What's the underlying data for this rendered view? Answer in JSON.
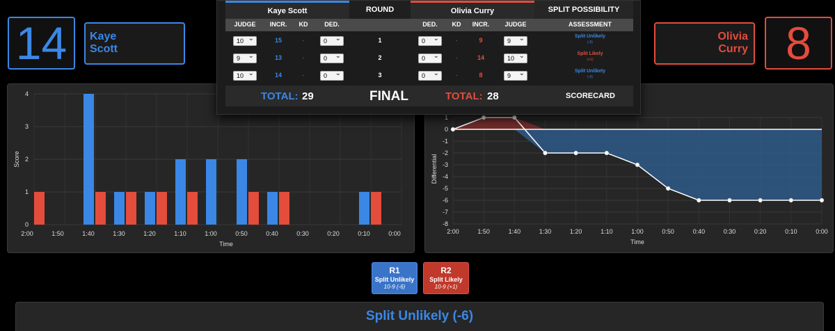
{
  "fighters": {
    "blue": {
      "score": "14",
      "first": "Kaye",
      "last": "Scott",
      "full": "Kaye Scott"
    },
    "red": {
      "score": "8",
      "first": "Olivia",
      "last": "Curry",
      "full": "Olivia Curry"
    }
  },
  "scorecard": {
    "round_header": "ROUND",
    "split_header": "SPLIT POSSIBILITY",
    "subheaders": {
      "judge": "JUDGE",
      "incr": "INCR.",
      "kd": "KD",
      "ded": "DED.",
      "assessment": "ASSESSMENT"
    },
    "rows": [
      {
        "round": "1",
        "blue_judge": "10",
        "blue_incr": "15",
        "blue_kd": "-",
        "blue_ded": "0",
        "red_ded": "0",
        "red_kd": "-",
        "red_incr": "9",
        "red_judge": "9",
        "assessment": "Split Unlikely",
        "assessment_sub": "(-6)",
        "assessment_color": "blue"
      },
      {
        "round": "2",
        "blue_judge": "9",
        "blue_incr": "13",
        "blue_kd": "-",
        "blue_ded": "0",
        "red_ded": "0",
        "red_kd": "-",
        "red_incr": "14",
        "red_judge": "10",
        "assessment": "Split Likely",
        "assessment_sub": "(+1)",
        "assessment_color": "red"
      },
      {
        "round": "3",
        "blue_judge": "10",
        "blue_incr": "14",
        "blue_kd": "-",
        "blue_ded": "0",
        "red_ded": "0",
        "red_kd": "-",
        "red_incr": "8",
        "red_judge": "9",
        "assessment": "Split Unlikely",
        "assessment_sub": "(-6)",
        "assessment_color": "blue"
      }
    ],
    "total_label": "TOTAL:",
    "blue_total": "29",
    "red_total": "28",
    "final_label": "FINAL",
    "scorecard_label": "SCORECARD"
  },
  "round_buttons": [
    {
      "label": "R1",
      "status": "Split Unlikely",
      "score": "10-9 (-6)",
      "color": "#3a74c8"
    },
    {
      "label": "R2",
      "status": "Split Likely",
      "score": "10-9 (+1)",
      "color": "#c0392b"
    }
  ],
  "banner": {
    "text": "Split Unlikely (-6)"
  },
  "colors": {
    "blue": "#3b87e6",
    "red": "#e44c3c"
  },
  "chart_data": [
    {
      "type": "bar",
      "xlabel": "Time",
      "ylabel": "Score",
      "ylim": [
        0,
        4
      ],
      "yticks": [
        "0",
        "1",
        "2",
        "3",
        "4"
      ],
      "categories": [
        "2:00",
        "1:50",
        "1:40",
        "1:30",
        "1:20",
        "1:10",
        "1:00",
        "0:50",
        "0:40",
        "0:30",
        "0:20",
        "0:10",
        "0:00"
      ],
      "series": [
        {
          "color": "#3b87e6",
          "values": [
            0,
            0,
            4,
            1,
            1,
            2,
            2,
            2,
            1,
            0,
            0,
            1,
            0
          ]
        },
        {
          "color": "#e44c3c",
          "values": [
            1,
            0,
            1,
            1,
            1,
            1,
            0,
            1,
            1,
            0,
            0,
            1,
            0
          ]
        }
      ]
    },
    {
      "type": "area",
      "xlabel": "Time",
      "ylabel": "Differential",
      "ylim": [
        -8,
        1
      ],
      "yticks": [
        "1",
        "0",
        "-1",
        "-2",
        "-3",
        "-4",
        "-5",
        "-6",
        "-7",
        "-8"
      ],
      "categories": [
        "2:00",
        "1:50",
        "1:40",
        "1:30",
        "1:20",
        "1:10",
        "1:00",
        "0:50",
        "0:40",
        "0:30",
        "0:20",
        "0:10",
        "0:00"
      ],
      "values": [
        0,
        1,
        1,
        -2,
        -2,
        -2,
        -3,
        -5,
        -6,
        -6,
        -6,
        -6,
        -6
      ]
    }
  ]
}
